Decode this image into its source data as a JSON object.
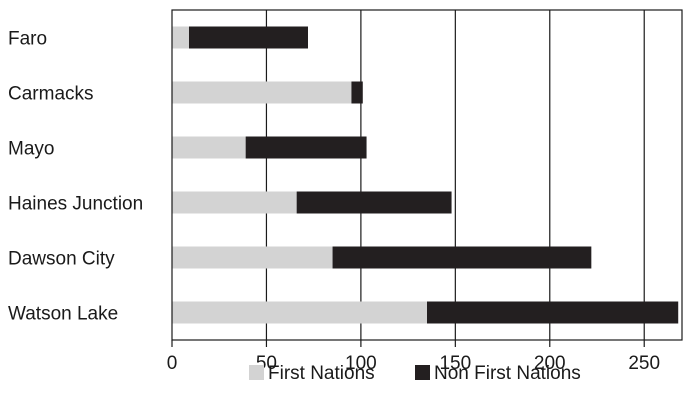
{
  "chart_data": {
    "type": "bar",
    "orientation": "horizontal",
    "stacked": true,
    "categories": [
      "Faro",
      "Carmacks",
      "Mayo",
      "Haines Junction",
      "Dawson City",
      "Watson Lake"
    ],
    "series": [
      {
        "name": "First Nations",
        "values": [
          9,
          95,
          39,
          66,
          85,
          135
        ],
        "color": "#d3d3d3"
      },
      {
        "name": "Non First Nations",
        "values": [
          63,
          6,
          64,
          82,
          137,
          133
        ],
        "color": "#231f20"
      }
    ],
    "xlim": [
      0,
      270
    ],
    "xticks": [
      0,
      50,
      100,
      150,
      200,
      250
    ],
    "grid": "vertical",
    "legend": "bottom"
  }
}
